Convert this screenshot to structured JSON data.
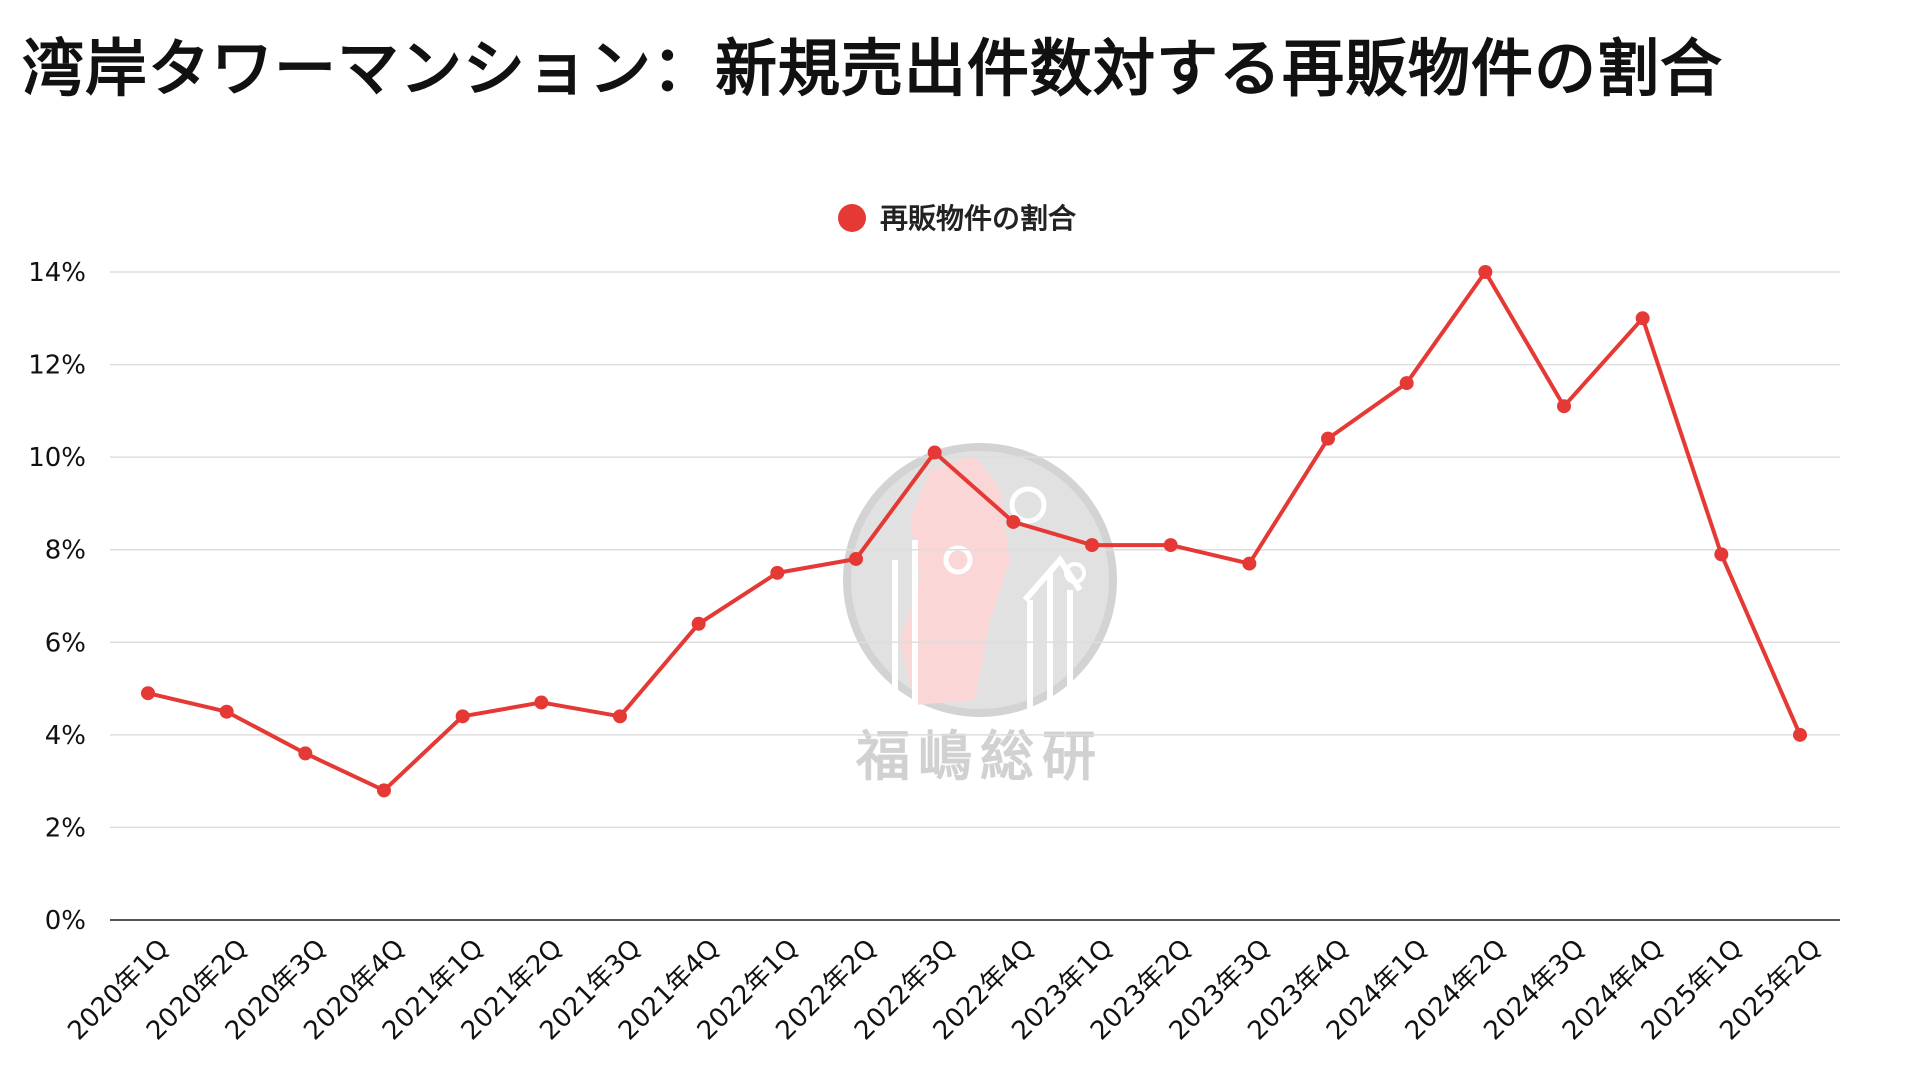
{
  "chart_data": {
    "type": "line",
    "title": "湾岸タワーマンション：新規売出件数対する再販物件の割合",
    "xlabel": "",
    "ylabel": "",
    "categories": [
      "2020年1Q",
      "2020年2Q",
      "2020年3Q",
      "2020年4Q",
      "2021年1Q",
      "2021年2Q",
      "2021年3Q",
      "2021年4Q",
      "2022年1Q",
      "2022年2Q",
      "2022年3Q",
      "2022年4Q",
      "2023年1Q",
      "2023年2Q",
      "2023年3Q",
      "2023年4Q",
      "2024年1Q",
      "2024年2Q",
      "2024年3Q",
      "2024年4Q",
      "2025年1Q",
      "2025年2Q"
    ],
    "series": [
      {
        "name": "再販物件の割合",
        "color": "#e53935",
        "values": [
          4.9,
          4.5,
          3.6,
          2.8,
          4.4,
          4.7,
          4.4,
          6.4,
          7.5,
          7.8,
          10.1,
          8.6,
          8.1,
          8.1,
          7.7,
          10.4,
          11.6,
          14.0,
          11.1,
          13.0,
          7.9,
          4.0
        ]
      }
    ],
    "ylim": [
      0,
      14
    ],
    "yticks": [
      0,
      2,
      4,
      6,
      8,
      10,
      12,
      14
    ],
    "ytick_labels": [
      "0%",
      "2%",
      "4%",
      "6%",
      "8%",
      "10%",
      "12%",
      "14%"
    ],
    "legend_position": "top-center",
    "grid": true
  },
  "watermark": {
    "text": "福嶋総研",
    "icon": "building-gear-logo-icon"
  }
}
